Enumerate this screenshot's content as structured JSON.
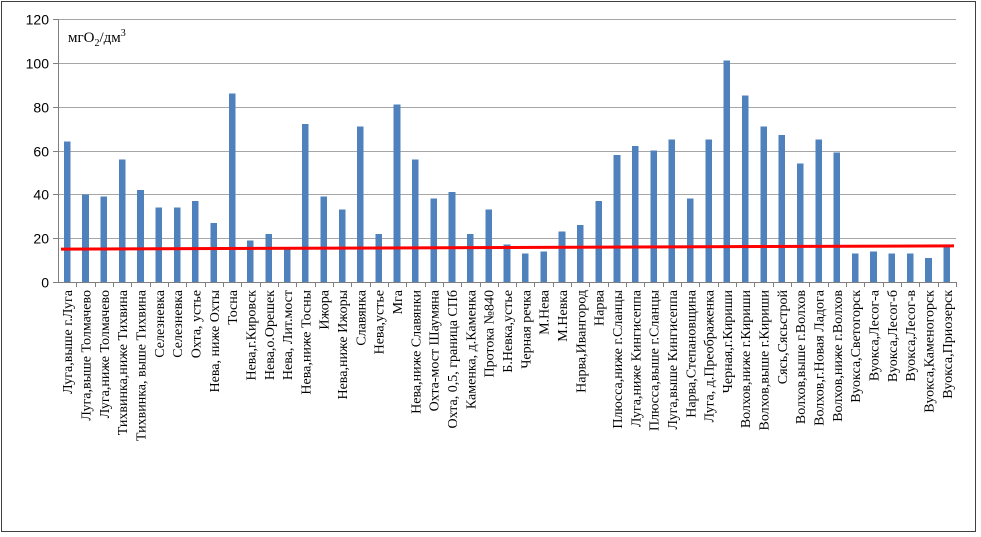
{
  "chart_data": {
    "type": "bar",
    "ylabel": "мгО2/дм3",
    "ylabel_parts": {
      "base": "мгО",
      "sub": "2",
      "mid": "/дм",
      "sup": "3"
    },
    "ylim": [
      0,
      120
    ],
    "yticks": [
      "0",
      "20",
      "40",
      "60",
      "80",
      "100",
      "120"
    ],
    "grid": true,
    "bar_color": "#4f81bd",
    "reference_line": {
      "value": 15,
      "value_end": 16.5,
      "color": "#ff0000"
    },
    "categories": [
      "Луга,выше г.Луга",
      "Луга,выше Толмачево",
      "Луга,ниже Толмачево",
      "Тихвинка,ниже Тихвина",
      "Тихвинка, выше Тихвина",
      "Селезневка",
      "Селезневка",
      "Охта, устье",
      "Нева, ниже Охты",
      "Тосна",
      "Нева,г.Кировск",
      "Нева,о.Орешек",
      "Нева, Лит.мост",
      "Нева,ниже Тосны",
      "Ижора",
      "Нева,ниже Ижоры",
      "Славянка",
      "Нева,устье",
      "Мга",
      "Нева,ниже Славянки",
      "Охта-мост Шаумяна",
      "Охта, 0,5, граница СПб",
      "Каменка, д.Каменка",
      "Протока №840",
      "Б.Невка,устье",
      "Черная речка",
      "М.Нева",
      "М.Невка",
      "Нарва,Ивангород",
      "Нарва",
      "Плюсса,ниже г.Сланцы",
      "Луга,ниже Кингисеппа",
      "Плюсса,выше г.Сланцы",
      "Луга,выше Кингисеппа",
      "Нарва,Степановщина",
      "Луга, д.Преображенка",
      "Черная,г.Кириши",
      "Волхов,ниже г.Кириши",
      "Волхов,выше г.Кириши",
      "Сясь,Сясьстрой",
      "Волхов,выше г.Волхов",
      "Волхов,г.Новая Ладога",
      "Волхов,ниже г.Волхов",
      "Вуокса,Светогорск",
      "Вуокса,Лесог-а",
      "Вуокса,Лесог-б",
      "Вуокса,Лесог-в",
      "Вуокса,Каменогорск",
      "Вуокса,Приозерск"
    ],
    "values": [
      64,
      40,
      39,
      56,
      42,
      34,
      34,
      37,
      27,
      86,
      19,
      22,
      15,
      72,
      39,
      33,
      71,
      22,
      81,
      56,
      38,
      41,
      22,
      33,
      17,
      13,
      14,
      23,
      26,
      37,
      58,
      62,
      60,
      65,
      38,
      65,
      101,
      85,
      71,
      67,
      54,
      65,
      59,
      13,
      14,
      13,
      13,
      11,
      17
    ]
  }
}
